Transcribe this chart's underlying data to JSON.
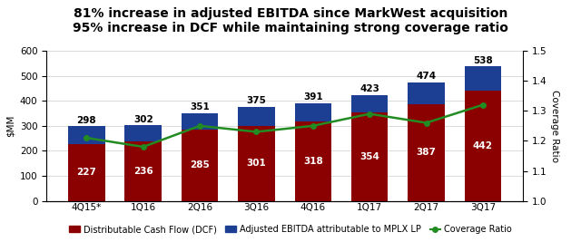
{
  "categories": [
    "4Q15*",
    "1Q16",
    "2Q16",
    "3Q16",
    "4Q16",
    "1Q17",
    "2Q17",
    "3Q17"
  ],
  "dcf_values": [
    227,
    236,
    285,
    301,
    318,
    354,
    387,
    442
  ],
  "ebitda_values": [
    298,
    302,
    351,
    375,
    391,
    423,
    474,
    538
  ],
  "coverage_ratio": [
    1.21,
    1.18,
    1.25,
    1.23,
    1.25,
    1.29,
    1.26,
    1.32
  ],
  "dcf_color": "#8B0000",
  "ebitda_color": "#1C3F94",
  "coverage_color": "#228B22",
  "title_line1": "81% increase in adjusted EBITDA since MarkWest acquisition",
  "title_line2": "95% increase in DCF while maintaining strong coverage ratio",
  "ylabel_left": "$MM",
  "ylabel_right": "Coverage Ratio",
  "ylim_left": [
    0,
    600
  ],
  "ylim_right": [
    1.0,
    1.5
  ],
  "yticks_left": [
    0,
    100,
    200,
    300,
    400,
    500,
    600
  ],
  "yticks_right": [
    1.0,
    1.1,
    1.2,
    1.3,
    1.4,
    1.5
  ],
  "legend_dcf": "Distributable Cash Flow (DCF)",
  "legend_ebitda": "Adjusted EBITDA attributable to MPLX LP",
  "legend_coverage": "Coverage Ratio",
  "background_color": "#ffffff",
  "title_fontsize": 10,
  "bar_label_fontsize": 7.5,
  "tick_fontsize": 7.5,
  "axis_label_fontsize": 7.5,
  "legend_fontsize": 7,
  "bar_width": 0.65
}
